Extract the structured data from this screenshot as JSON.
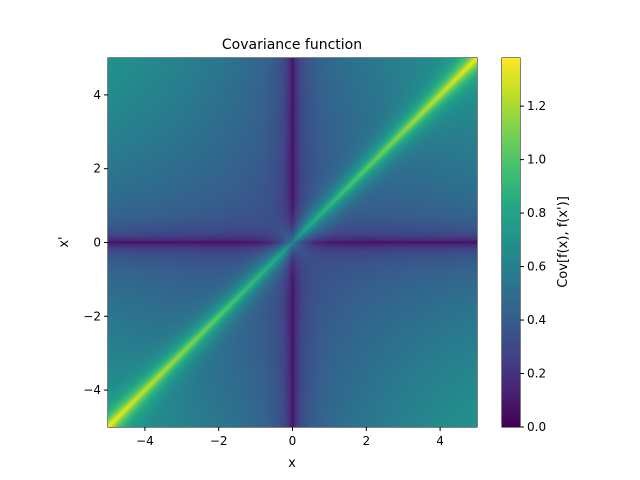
{
  "chart_data": {
    "type": "heatmap",
    "title": "Covariance function",
    "xlabel": "x",
    "ylabel": "x'",
    "xlim": [
      -5,
      5
    ],
    "ylim": [
      -5,
      5
    ],
    "xticks": [
      -4,
      -2,
      0,
      2,
      4
    ],
    "yticks": [
      -4,
      -2,
      0,
      2,
      4
    ],
    "xtick_labels": [
      "−4",
      "−2",
      "0",
      "2",
      "4"
    ],
    "ytick_labels": [
      "−4",
      "−2",
      "0",
      "2",
      "4"
    ],
    "colormap": "viridis",
    "colorbar": {
      "label": "Cov[f(x), f(x')]",
      "range": [
        0,
        1.38
      ],
      "ticks": [
        0.0,
        0.2,
        0.4,
        0.6,
        0.8,
        1.0,
        1.2
      ],
      "tick_labels": [
        "0.0",
        "0.2",
        "0.4",
        "0.6",
        "0.8",
        "1.0",
        "1.2"
      ]
    },
    "grid": false
  }
}
